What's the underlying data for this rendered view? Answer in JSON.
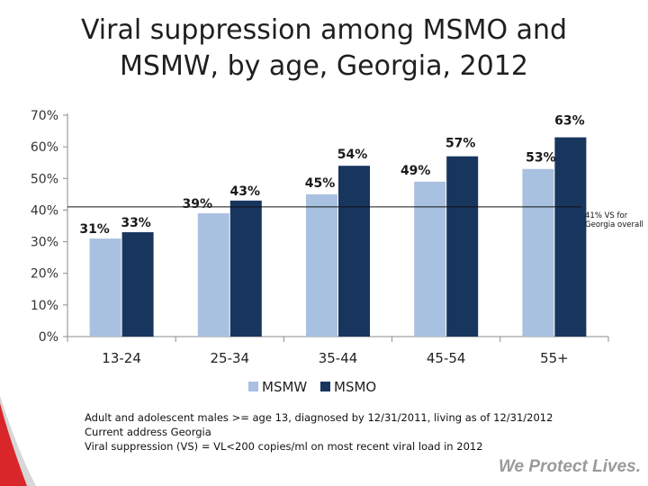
{
  "title_lines": [
    "Viral suppression among MSMO and",
    "MSMW, by age, Georgia, 2012"
  ],
  "chart_data": {
    "type": "bar",
    "title": "Viral suppression among MSMO and MSMW, by age, Georgia, 2012",
    "categories": [
      "13-24",
      "25-34",
      "35-44",
      "45-54",
      "55+"
    ],
    "series": [
      {
        "name": "MSMW",
        "values": [
          31,
          39,
          45,
          49,
          53
        ],
        "labels": [
          "31%",
          "39%",
          "45%",
          "49%",
          "53%"
        ],
        "color": "#a9c1e0"
      },
      {
        "name": "MSMO",
        "values": [
          33,
          43,
          54,
          57,
          63
        ],
        "labels": [
          "33%",
          "43%",
          "54%",
          "57%",
          "63%"
        ],
        "color": "#18355e"
      }
    ],
    "yticks": [
      0,
      10,
      20,
      30,
      40,
      50,
      60,
      70
    ],
    "ytick_labels": [
      "0%",
      "10%",
      "20%",
      "30%",
      "40%",
      "50%",
      "60%",
      "70%"
    ],
    "ylim": [
      0,
      70
    ],
    "reference_line": {
      "value": 41,
      "label_lines": [
        "41% VS for",
        "Georgia overall"
      ]
    },
    "legend_position": "bottom",
    "xlabel": "",
    "ylabel": ""
  },
  "footnotes": [
    "Adult and adolescent males >= age 13, diagnosed by 12/31/2011, living as of 12/31/2012",
    "Current address Georgia",
    "Viral suppression (VS) = VL<200 copies/ml on most recent viral load in 2012"
  ],
  "tagline": "We Protect Lives.",
  "colors": {
    "accent_red": "#d9262a",
    "swoosh_gray": "#d7d7d7"
  }
}
